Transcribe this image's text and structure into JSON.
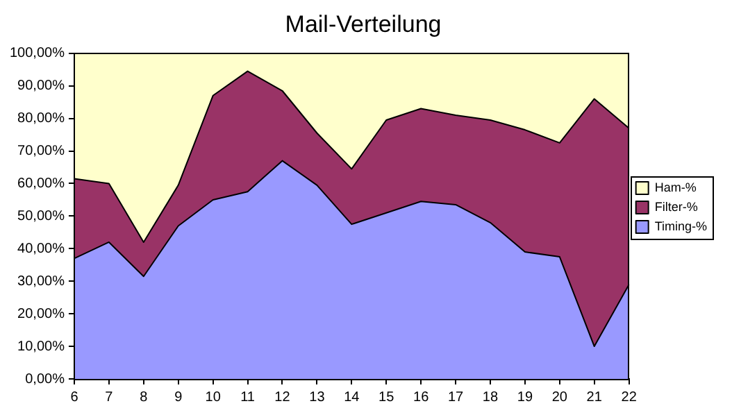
{
  "chart_data": {
    "type": "area",
    "title": "Mail-Verteilung",
    "stacked": true,
    "categories": [
      "6",
      "7",
      "8",
      "9",
      "10",
      "11",
      "12",
      "13",
      "14",
      "15",
      "16",
      "17",
      "18",
      "19",
      "20",
      "21",
      "22"
    ],
    "series": [
      {
        "name": "Timing-%",
        "color": "#9999ff",
        "values": [
          37,
          42,
          31.5,
          47,
          55,
          57.5,
          67,
          59.5,
          47.5,
          51,
          54.5,
          53.5,
          48,
          39,
          37.5,
          10,
          29
        ]
      },
      {
        "name": "Filter-%",
        "color": "#993366",
        "values": [
          24.5,
          18,
          10.5,
          12.5,
          32,
          37,
          21.5,
          16,
          17,
          28.5,
          28.5,
          27.5,
          31.5,
          37.5,
          35,
          76,
          48
        ]
      },
      {
        "name": "Ham-%",
        "color": "#ffffcc",
        "values": [
          38.5,
          40,
          58,
          40.5,
          13,
          5.5,
          11.5,
          24.5,
          35.5,
          20.5,
          17,
          19,
          20.5,
          23.5,
          27.5,
          14,
          23
        ]
      }
    ],
    "ylim": [
      0,
      100
    ],
    "yticks": [
      {
        "value": 0,
        "label": "0,00%"
      },
      {
        "value": 10,
        "label": "10,00%"
      },
      {
        "value": 20,
        "label": "20,00%"
      },
      {
        "value": 30,
        "label": "30,00%"
      },
      {
        "value": 40,
        "label": "40,00%"
      },
      {
        "value": 50,
        "label": "50,00%"
      },
      {
        "value": 60,
        "label": "60,00%"
      },
      {
        "value": 70,
        "label": "70,00%"
      },
      {
        "value": 80,
        "label": "80,00%"
      },
      {
        "value": 90,
        "label": "90,00%"
      },
      {
        "value": 100,
        "label": "100,00%"
      }
    ],
    "legend": "right",
    "marker": "none"
  }
}
